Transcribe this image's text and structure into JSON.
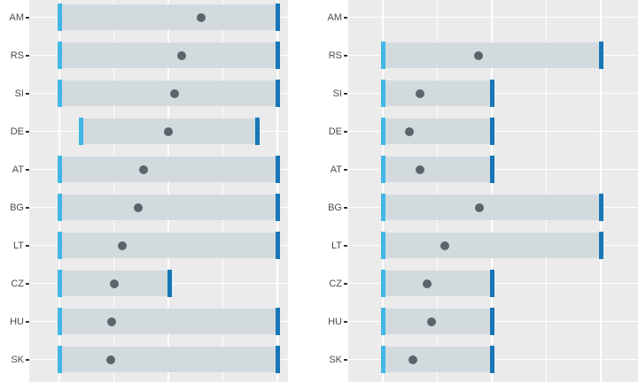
{
  "chart_data": {
    "type": "bar",
    "subtype": "horizontal-range-dumbbell",
    "title": "",
    "xlabel": "",
    "ylabel": "",
    "legend": "none",
    "grid": "white major gridlines on light gray panel background",
    "facets": [
      "left",
      "right"
    ],
    "categories": [
      "AM",
      "RS",
      "SI",
      "DE",
      "AT",
      "BG",
      "LT",
      "CZ",
      "HU",
      "SK"
    ],
    "value_scale_note": "x-axis tick labels not visible in crop; min/max/dot given as percent of the span between the first and fifth visible vertical gridlines",
    "xlim": [
      0,
      100
    ],
    "x_gridlines": [
      0,
      25,
      50,
      75,
      100
    ],
    "marks_per_row": [
      "range-bar",
      "lower-tick",
      "upper-tick",
      "estimate-dot"
    ],
    "series": [
      {
        "facet": "left",
        "rows": [
          {
            "label": "AM",
            "min": 0,
            "max": 100,
            "dot": 65
          },
          {
            "label": "RS",
            "min": 0,
            "max": 100,
            "dot": 56
          },
          {
            "label": "SI",
            "min": 0,
            "max": 100,
            "dot": 53
          },
          {
            "label": "DE",
            "min": 10,
            "max": 91,
            "dot": 50
          },
          {
            "label": "AT",
            "min": 0,
            "max": 100,
            "dot": 38.5
          },
          {
            "label": "BG",
            "min": 0,
            "max": 100,
            "dot": 36
          },
          {
            "label": "LT",
            "min": 0,
            "max": 100,
            "dot": 29
          },
          {
            "label": "CZ",
            "min": 0,
            "max": 50.5,
            "dot": 25
          },
          {
            "label": "HU",
            "min": 0,
            "max": 100,
            "dot": 24
          },
          {
            "label": "SK",
            "min": 0,
            "max": 100,
            "dot": 23.5
          }
        ]
      },
      {
        "facet": "right",
        "rows": [
          {
            "label": "AM",
            "min": null,
            "max": null,
            "dot": null
          },
          {
            "label": "RS",
            "min": 0,
            "max": 100,
            "dot": 44
          },
          {
            "label": "SI",
            "min": 0,
            "max": 50,
            "dot": 17
          },
          {
            "label": "DE",
            "min": 0,
            "max": 50,
            "dot": 12
          },
          {
            "label": "AT",
            "min": 0,
            "max": 50,
            "dot": 17
          },
          {
            "label": "BG",
            "min": 0,
            "max": 100,
            "dot": 44.5
          },
          {
            "label": "LT",
            "min": 0,
            "max": 100,
            "dot": 28.5
          },
          {
            "label": "CZ",
            "min": 0,
            "max": 50,
            "dot": 20.5
          },
          {
            "label": "HU",
            "min": 0,
            "max": 50,
            "dot": 22.5
          },
          {
            "label": "SK",
            "min": 0,
            "max": 50,
            "dot": 14
          }
        ]
      }
    ]
  },
  "style": {
    "background": "#ffffff",
    "panel_bg": "#ebebeb",
    "gridline": "#ffffff",
    "bar_fill": "#d3dade",
    "lower_tick": "#41b7e6",
    "upper_tick": "#1777b6",
    "dot": "#5a646b",
    "label_text": "#4d4d4d",
    "axis_tick": "#333333"
  }
}
